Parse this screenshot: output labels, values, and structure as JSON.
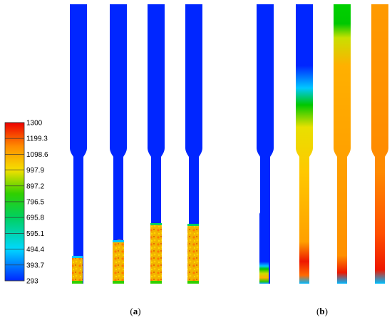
{
  "colorbar": {
    "ticks": [
      "1300",
      "1199.3",
      "1098.6",
      "997.9",
      "897.2",
      "796.5",
      "695.8",
      "595.1",
      "494.4",
      "393.7",
      "293"
    ],
    "min": 293,
    "max": 1300,
    "colors": {
      "red": "#ee0000",
      "orange": "#ff8c00",
      "yellow": "#f5e000",
      "green": "#00c800",
      "cyan": "#00d8ff",
      "blue": "#0026ff"
    }
  },
  "captions": {
    "a": {
      "open": "(",
      "letter": "a",
      "close": ")"
    },
    "b": {
      "open": "(",
      "letter": "b",
      "close": ")"
    }
  }
}
